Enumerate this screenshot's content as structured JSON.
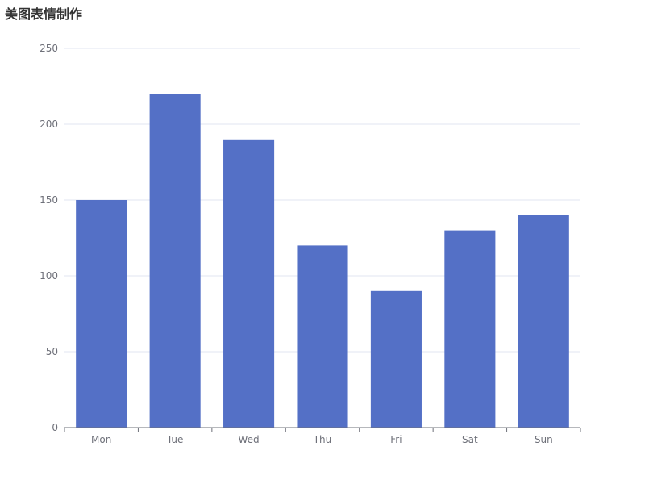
{
  "chart_data": {
    "type": "bar",
    "title": "美图表情制作",
    "categories": [
      "Mon",
      "Tue",
      "Wed",
      "Thu",
      "Fri",
      "Sat",
      "Sun"
    ],
    "values": [
      150,
      220,
      190,
      120,
      90,
      130,
      140
    ],
    "ylim": [
      0,
      250
    ],
    "yticks": [
      0,
      50,
      100,
      150,
      200,
      250
    ],
    "xlabel": "",
    "ylabel": "",
    "grid": true,
    "colors": {
      "bar": "#5470c6",
      "grid": "#e0e6f1",
      "axis": "#6e7079",
      "title": "#333333"
    }
  }
}
